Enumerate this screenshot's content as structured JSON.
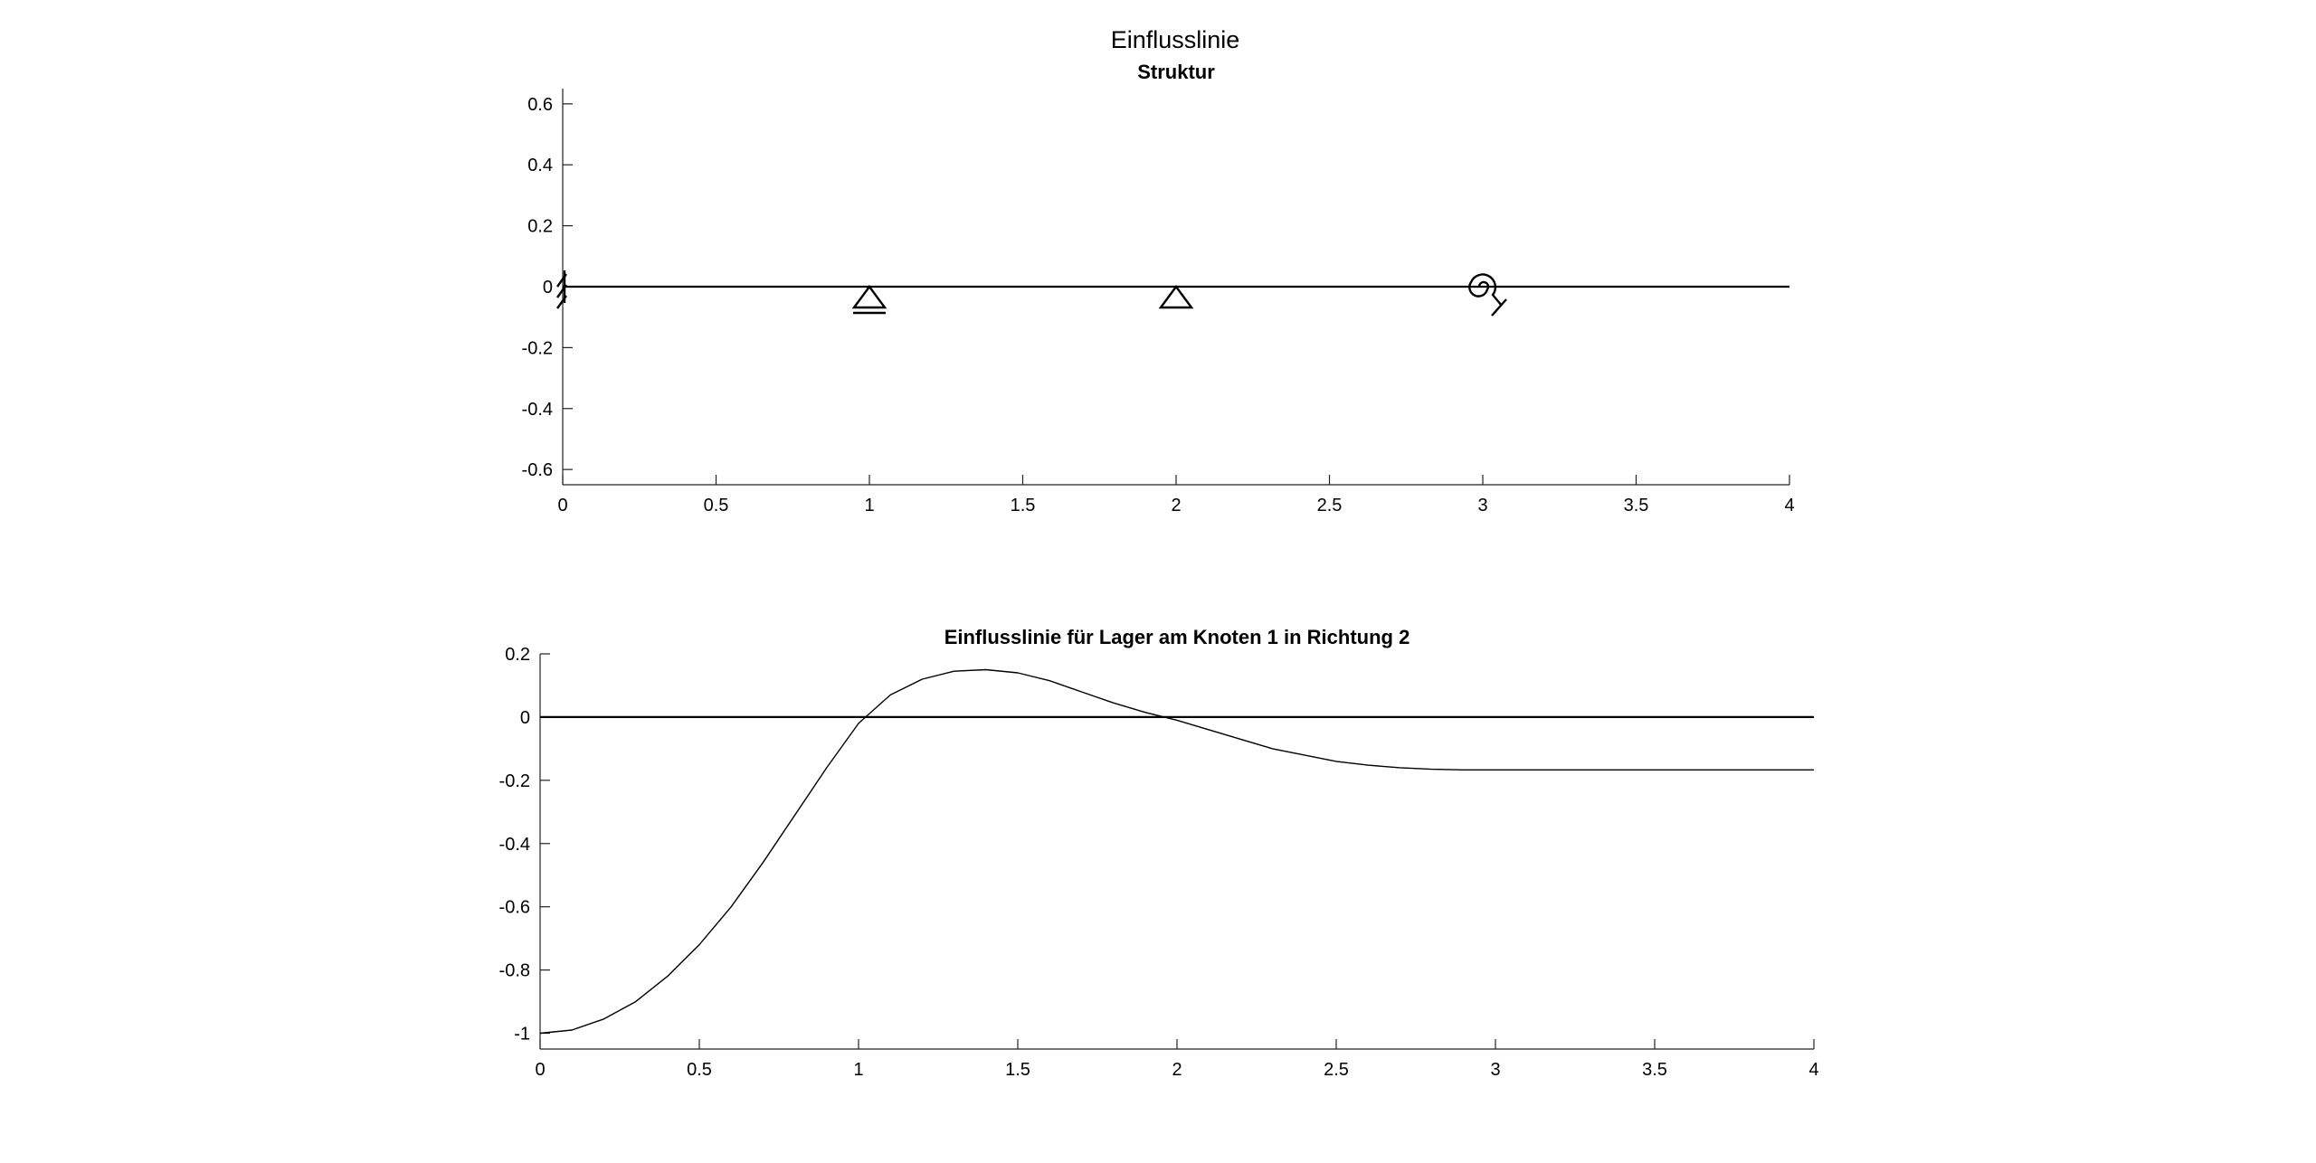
{
  "figure": {
    "title": "Einflusslinie"
  },
  "chart_data": [
    {
      "type": "line",
      "title": "Struktur",
      "xlabel": "",
      "ylabel": "",
      "xlim": [
        0,
        4
      ],
      "ylim": [
        -0.65,
        0.65
      ],
      "xticks": [
        0,
        0.5,
        1,
        1.5,
        2,
        2.5,
        3,
        3.5,
        4
      ],
      "yticks": [
        0.6,
        0.4,
        0.2,
        0,
        -0.2,
        -0.4,
        -0.6
      ],
      "xticklabels": [
        "0",
        "0.5",
        "1",
        "1.5",
        "2",
        "2.5",
        "3",
        "3.5",
        "4"
      ],
      "yticklabels": [
        "0.6",
        "0.4",
        "0.2",
        "0",
        "-0.2",
        "-0.4",
        "-0.6"
      ],
      "grid": false,
      "series": [
        {
          "x": [
            0,
            4
          ],
          "y": [
            0,
            0
          ],
          "color": "#000000"
        }
      ],
      "supports": [
        {
          "x": 0,
          "symbol": "fixed-support"
        },
        {
          "x": 1,
          "symbol": "roller-support"
        },
        {
          "x": 2,
          "symbol": "pinned-support"
        },
        {
          "x": 3,
          "symbol": "rotational-spring"
        }
      ]
    },
    {
      "type": "line",
      "title": "Einflusslinie für Lager am Knoten 1 in Richtung 2",
      "xlabel": "",
      "ylabel": "",
      "xlim": [
        0,
        4
      ],
      "ylim": [
        -1.05,
        0.2
      ],
      "xticks": [
        0,
        0.5,
        1,
        1.5,
        2,
        2.5,
        3,
        3.5,
        4
      ],
      "yticks": [
        0.2,
        0,
        -0.2,
        -0.4,
        -0.6,
        -0.8,
        -1
      ],
      "xticklabels": [
        "0",
        "0.5",
        "1",
        "1.5",
        "2",
        "2.5",
        "3",
        "3.5",
        "4"
      ],
      "yticklabels": [
        "0.2",
        "0",
        "-0.2",
        "-0.4",
        "-0.6",
        "-0.8",
        "-1"
      ],
      "grid": false,
      "series": [
        {
          "x": [
            0,
            0.1,
            0.2,
            0.3,
            0.4,
            0.5,
            0.6,
            0.7,
            0.8,
            0.9,
            1.0,
            1.1,
            1.2,
            1.3,
            1.4,
            1.5,
            1.6,
            1.7,
            1.8,
            1.9,
            2.0,
            2.1,
            2.2,
            2.3,
            2.4,
            2.5,
            2.6,
            2.7,
            2.8,
            2.9,
            3.0,
            3.5,
            4.0
          ],
          "y": [
            -1.0,
            -0.99,
            -0.955,
            -0.9,
            -0.82,
            -0.72,
            -0.6,
            -0.46,
            -0.31,
            -0.16,
            -0.02,
            0.07,
            0.12,
            0.145,
            0.15,
            0.14,
            0.115,
            0.08,
            0.045,
            0.015,
            -0.01,
            -0.04,
            -0.07,
            -0.1,
            -0.12,
            -0.14,
            -0.152,
            -0.16,
            -0.165,
            -0.167,
            -0.167,
            -0.167,
            -0.167
          ],
          "color": "#000000"
        },
        {
          "x": [
            0,
            4
          ],
          "y": [
            0,
            0
          ],
          "color": "#000000"
        }
      ]
    }
  ]
}
